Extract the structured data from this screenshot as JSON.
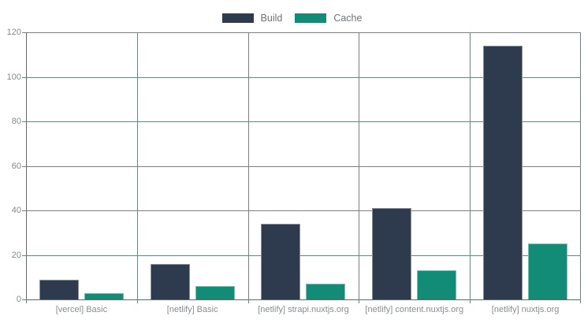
{
  "chart_data": {
    "type": "bar",
    "title": "",
    "xlabel": "",
    "ylabel": "",
    "categories": [
      "[vercel] Basic",
      "[netlify] Basic",
      "[netlify] strapi.nuxtjs.org",
      "[netlify] content.nuxtjs.org",
      "[netlify] nuxtjs.org"
    ],
    "series": [
      {
        "name": "Build",
        "color": "#2e3a4d",
        "values": [
          9,
          16,
          34,
          41,
          114
        ]
      },
      {
        "name": "Cache",
        "color": "#128c76",
        "values": [
          3,
          6,
          7,
          13,
          25
        ]
      }
    ],
    "ylim": [
      0,
      120
    ],
    "yticks": [
      0,
      20,
      40,
      60,
      80,
      100,
      120
    ],
    "grid": true,
    "legend_position": "top"
  },
  "colors": {
    "gridline": "#6e8582",
    "axis": "#5d6b69",
    "tick_text": "#85898d",
    "legend_text": "#6e7478",
    "background": "#ffffff"
  }
}
